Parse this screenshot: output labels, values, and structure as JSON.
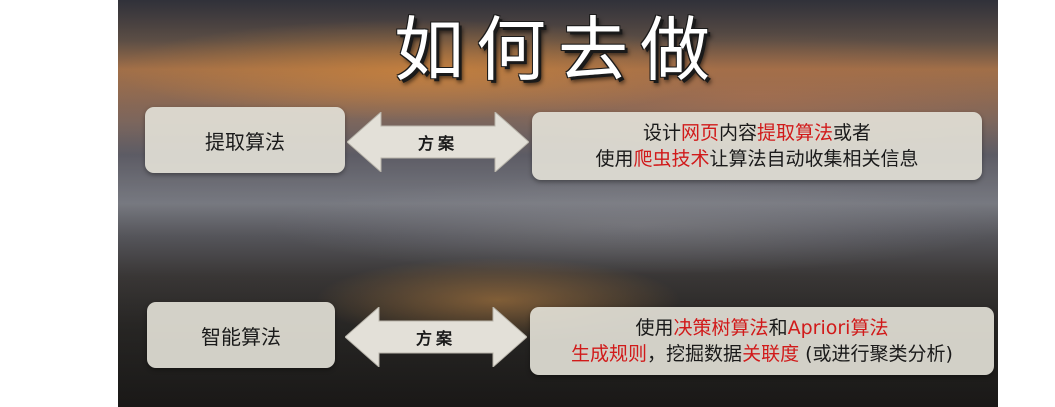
{
  "slide": {
    "title": "如何去做",
    "rows": [
      {
        "label": "提取算法",
        "arrow_label": "方案",
        "line1": [
          {
            "text": "设计",
            "red": false
          },
          {
            "text": "网页",
            "red": true
          },
          {
            "text": "内容",
            "red": false
          },
          {
            "text": "提取算法",
            "red": true
          },
          {
            "text": "或者",
            "red": false
          }
        ],
        "line2": [
          {
            "text": "使用",
            "red": false
          },
          {
            "text": "爬虫技术",
            "red": true
          },
          {
            "text": "让算法自动收集相关信息",
            "red": false
          }
        ]
      },
      {
        "label": "智能算法",
        "arrow_label": "方案",
        "line1": [
          {
            "text": "使用",
            "red": false
          },
          {
            "text": "决策树算法",
            "red": true
          },
          {
            "text": "和",
            "red": false
          },
          {
            "text": "Apriori算法",
            "red": true
          }
        ],
        "line2": [
          {
            "text": "生成规则",
            "red": true
          },
          {
            "text": "，挖掘数据",
            "red": false
          },
          {
            "text": "关联度",
            "red": true
          },
          {
            "text": " (或进行聚类分析)",
            "red": false
          }
        ]
      }
    ]
  },
  "colors": {
    "highlight": "#d11a1a",
    "box_fill": "#e2dfd6"
  }
}
